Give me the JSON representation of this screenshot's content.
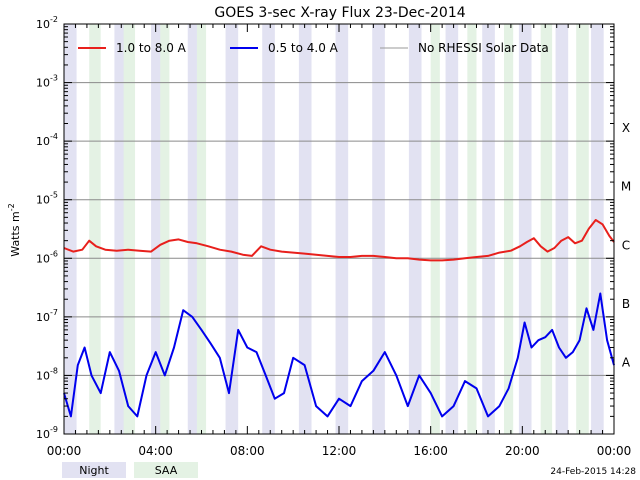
{
  "chart_data": {
    "type": "line",
    "title": "GOES 3-sec X-ray Flux   23-Dec-2014",
    "ylabel": "Watts m",
    "ylabel_sup": "-2",
    "ylim": [
      1e-09,
      0.01
    ],
    "y_scale": "log",
    "xlim": [
      0,
      24
    ],
    "x_ticks": [
      "00:00",
      "04:00",
      "08:00",
      "12:00",
      "16:00",
      "20:00",
      "00:00"
    ],
    "y_ticks": [
      {
        "base": "10",
        "exp": "-9"
      },
      {
        "base": "10",
        "exp": "-8"
      },
      {
        "base": "10",
        "exp": "-7"
      },
      {
        "base": "10",
        "exp": "-6"
      },
      {
        "base": "10",
        "exp": "-5"
      },
      {
        "base": "10",
        "exp": "-4"
      },
      {
        "base": "10",
        "exp": "-3"
      },
      {
        "base": "10",
        "exp": "-2"
      }
    ],
    "flare_classes": [
      {
        "label": "A",
        "value": 1e-08
      },
      {
        "label": "B",
        "value": 1e-07
      },
      {
        "label": "C",
        "value": 1e-06
      },
      {
        "label": "M",
        "value": 1e-05
      },
      {
        "label": "X",
        "value": 0.0001
      }
    ],
    "grid": true,
    "legend_position": "top",
    "series": [
      {
        "name": "1.0 to 8.0 A",
        "color": "#e8201c",
        "x": [
          0,
          0.4,
          0.8,
          1.1,
          1.4,
          1.8,
          2.3,
          2.8,
          3.3,
          3.8,
          4.2,
          4.6,
          5.0,
          5.4,
          5.8,
          6.3,
          6.8,
          7.3,
          7.8,
          8.2,
          8.6,
          9.0,
          9.5,
          10,
          10.5,
          11,
          11.5,
          12,
          12.5,
          13,
          13.5,
          14,
          14.5,
          15,
          15.5,
          16,
          16.5,
          17,
          17.5,
          18,
          18.5,
          19,
          19.5,
          19.9,
          20.2,
          20.5,
          20.8,
          21.1,
          21.4,
          21.7,
          22,
          22.3,
          22.6,
          22.9,
          23.2,
          23.5,
          23.8,
          24
        ],
        "y": [
          1.5e-06,
          1.3e-06,
          1.4e-06,
          2e-06,
          1.6e-06,
          1.4e-06,
          1.35e-06,
          1.4e-06,
          1.35e-06,
          1.3e-06,
          1.7e-06,
          2e-06,
          2.1e-06,
          1.9e-06,
          1.8e-06,
          1.6e-06,
          1.4e-06,
          1.3e-06,
          1.15e-06,
          1.1e-06,
          1.6e-06,
          1.4e-06,
          1.3e-06,
          1.25e-06,
          1.2e-06,
          1.15e-06,
          1.1e-06,
          1.05e-06,
          1.05e-06,
          1.1e-06,
          1.1e-06,
          1.05e-06,
          1e-06,
          1e-06,
          9.5e-07,
          9.2e-07,
          9.2e-07,
          9.5e-07,
          1e-06,
          1.05e-06,
          1.1e-06,
          1.25e-06,
          1.35e-06,
          1.6e-06,
          1.9e-06,
          2.2e-06,
          1.6e-06,
          1.3e-06,
          1.5e-06,
          2e-06,
          2.3e-06,
          1.8e-06,
          2e-06,
          3.2e-06,
          4.5e-06,
          3.8e-06,
          2.4e-06,
          1.9e-06
        ]
      },
      {
        "name": "0.5 to 4.0 A",
        "color": "#0000ee",
        "x": [
          0,
          0.3,
          0.6,
          0.9,
          1.2,
          1.6,
          2.0,
          2.4,
          2.8,
          3.2,
          3.6,
          4.0,
          4.4,
          4.8,
          5.2,
          5.6,
          6.0,
          6.4,
          6.8,
          7.2,
          7.6,
          8.0,
          8.4,
          8.8,
          9.2,
          9.6,
          10,
          10.5,
          11,
          11.5,
          12,
          12.5,
          13,
          13.5,
          14,
          14.5,
          15,
          15.5,
          16,
          16.5,
          17,
          17.5,
          18,
          18.5,
          19,
          19.4,
          19.8,
          20.1,
          20.4,
          20.7,
          21.0,
          21.3,
          21.6,
          21.9,
          22.2,
          22.5,
          22.8,
          23.1,
          23.4,
          23.7,
          24
        ],
        "y": [
          5e-09,
          2e-09,
          1.5e-08,
          3e-08,
          1e-08,
          5e-09,
          2.5e-08,
          1.2e-08,
          3e-09,
          2e-09,
          1e-08,
          2.5e-08,
          1e-08,
          3e-08,
          1.3e-07,
          1e-07,
          6e-08,
          3.5e-08,
          2e-08,
          5e-09,
          6e-08,
          3e-08,
          2.5e-08,
          1e-08,
          4e-09,
          5e-09,
          2e-08,
          1.5e-08,
          3e-09,
          2e-09,
          4e-09,
          3e-09,
          8e-09,
          1.2e-08,
          2.5e-08,
          1e-08,
          3e-09,
          1e-08,
          5e-09,
          2e-09,
          3e-09,
          8e-09,
          6e-09,
          2e-09,
          3e-09,
          6e-09,
          2e-08,
          8e-08,
          3e-08,
          4e-08,
          4.5e-08,
          6e-08,
          3e-08,
          2e-08,
          2.5e-08,
          4e-08,
          1.4e-07,
          6e-08,
          2.5e-07,
          4e-08,
          1.5e-08
        ]
      }
    ],
    "extra_legend": {
      "name": "No RHESSI Solar Data",
      "color": "#999999"
    },
    "night_bands": [
      [
        0.0,
        0.55
      ],
      [
        2.2,
        2.75
      ],
      [
        3.8,
        4.35
      ],
      [
        5.4,
        5.95
      ],
      [
        7.05,
        7.6
      ],
      [
        8.65,
        9.2
      ],
      [
        10.25,
        10.8
      ],
      [
        11.85,
        12.4
      ],
      [
        13.45,
        14.0
      ],
      [
        15.05,
        15.6
      ],
      [
        16.65,
        17.2
      ],
      [
        18.25,
        18.8
      ],
      [
        19.85,
        20.4
      ],
      [
        21.45,
        22.0
      ],
      [
        23.0,
        23.55
      ]
    ],
    "saa_bands": [
      [
        1.1,
        1.6
      ],
      [
        2.6,
        3.1
      ],
      [
        4.2,
        4.6
      ],
      [
        5.8,
        6.2
      ],
      [
        16.0,
        16.4
      ],
      [
        17.6,
        18.0
      ],
      [
        19.2,
        19.6
      ],
      [
        20.8,
        21.3
      ],
      [
        22.35,
        22.9
      ]
    ],
    "bottom_legend": [
      "Night",
      "SAA"
    ],
    "timestamp": "24-Feb-2015 14:28"
  }
}
